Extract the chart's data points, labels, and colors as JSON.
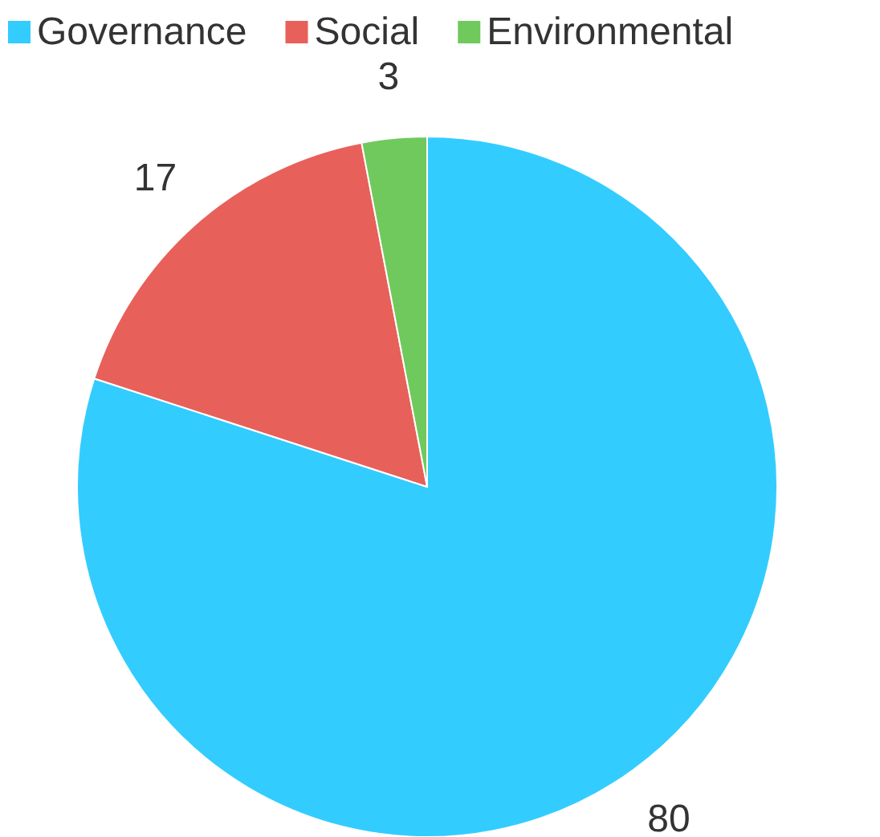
{
  "chart_data": {
    "type": "pie",
    "categories": [
      "Governance",
      "Social",
      "Environmental"
    ],
    "values": [
      80,
      17,
      3
    ],
    "colors": [
      "#33ccff",
      "#e8605a",
      "#70c95c"
    ],
    "data_labels": true,
    "legend": "top left"
  }
}
